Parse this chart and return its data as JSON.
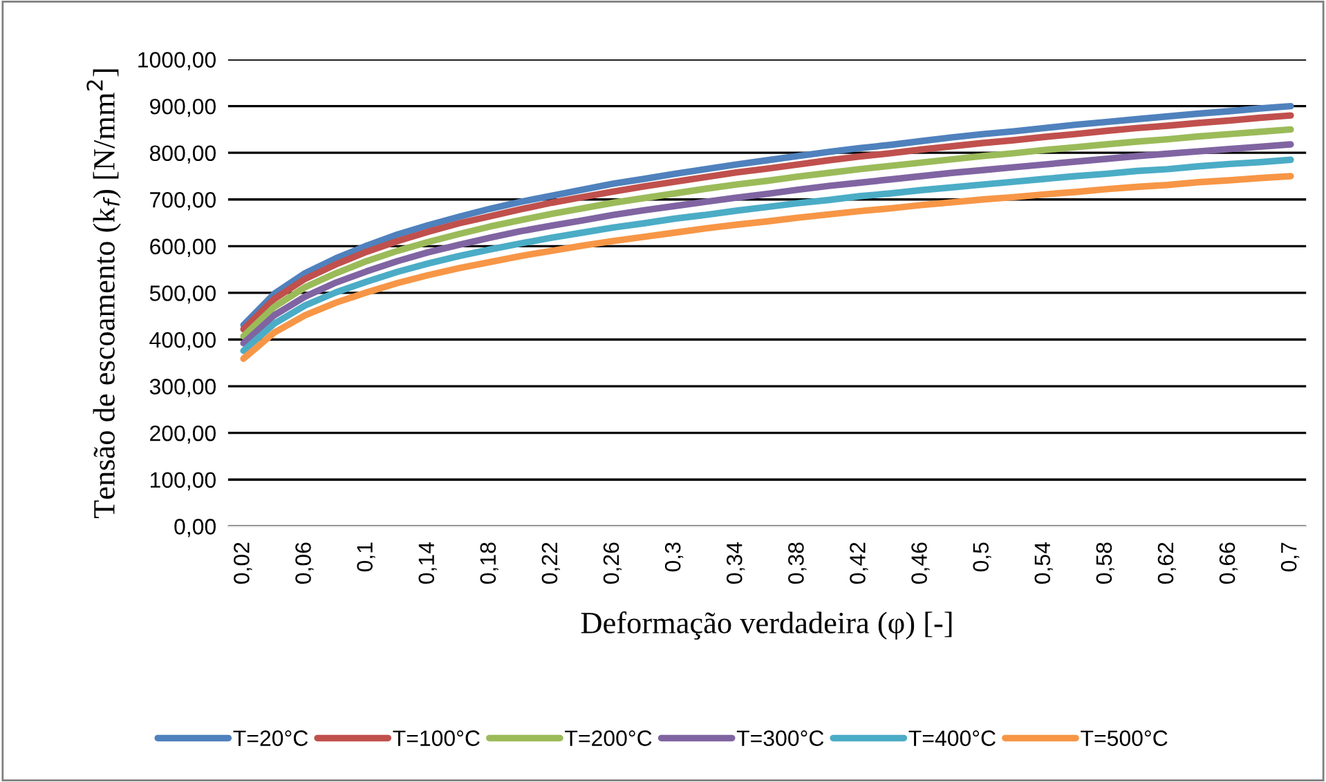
{
  "chart_data": {
    "type": "line",
    "xlabel": "Deformação verdadeira (φ) [-]",
    "ylabel": "Tensão de escoamento (k$_{f}$) [N/mm$^{2}$]",
    "categories": [
      "0,02",
      null,
      "0,06",
      null,
      "0,1",
      null,
      "0,14",
      null,
      "0,18",
      null,
      "0,22",
      null,
      "0,26",
      null,
      "0,3",
      null,
      "0,34",
      null,
      "0,38",
      null,
      "0,42",
      null,
      "0,46",
      null,
      "0,5",
      null,
      "0,54",
      null,
      "0,58",
      null,
      "0,62",
      null,
      "0,66",
      null,
      "0,7"
    ],
    "series": [
      {
        "name": "T=20°C",
        "color": "#4f81bd",
        "values": [
          431,
          498,
          542,
          574,
          601,
          625,
          645,
          663,
          680,
          695,
          708,
          721,
          734,
          744,
          755,
          765,
          775,
          784,
          793,
          802,
          810,
          817,
          825,
          833,
          840,
          846,
          853,
          860,
          866,
          872,
          878,
          884,
          889,
          895,
          900
        ]
      },
      {
        "name": "T=100°C",
        "color": "#c0504d",
        "values": [
          422,
          487,
          530,
          561,
          588,
          611,
          631,
          649,
          664,
          679,
          693,
          705,
          717,
          728,
          738,
          748,
          758,
          766,
          775,
          784,
          792,
          799,
          807,
          814,
          821,
          827,
          834,
          840,
          847,
          853,
          858,
          864,
          869,
          875,
          880
        ]
      },
      {
        "name": "T=200°C",
        "color": "#9bbb59",
        "values": [
          407,
          470,
          512,
          542,
          568,
          590,
          609,
          626,
          642,
          656,
          669,
          681,
          693,
          703,
          713,
          723,
          732,
          740,
          749,
          757,
          765,
          772,
          779,
          786,
          793,
          799,
          806,
          812,
          818,
          824,
          829,
          835,
          840,
          845,
          850
        ]
      },
      {
        "name": "T=300°C",
        "color": "#8064a2",
        "values": [
          392,
          452,
          492,
          522,
          546,
          568,
          587,
          603,
          618,
          632,
          644,
          655,
          667,
          677,
          686,
          695,
          704,
          712,
          721,
          729,
          736,
          743,
          750,
          757,
          763,
          769,
          775,
          781,
          787,
          793,
          798,
          803,
          808,
          813,
          818
        ]
      },
      {
        "name": "T=400°C",
        "color": "#4bacc6",
        "values": [
          376,
          434,
          473,
          501,
          524,
          545,
          563,
          579,
          593,
          606,
          618,
          629,
          640,
          649,
          659,
          667,
          676,
          684,
          692,
          699,
          707,
          713,
          720,
          726,
          732,
          738,
          744,
          750,
          755,
          761,
          765,
          771,
          776,
          780,
          785
        ]
      },
      {
        "name": "T=500°C",
        "color": "#f79646",
        "values": [
          359,
          415,
          452,
          479,
          501,
          521,
          538,
          553,
          566,
          579,
          590,
          601,
          611,
          620,
          629,
          638,
          646,
          653,
          661,
          668,
          675,
          681,
          688,
          694,
          700,
          705,
          711,
          716,
          722,
          727,
          731,
          737,
          741,
          746,
          750
        ]
      }
    ],
    "ylim": [
      0,
      1000
    ],
    "yticks": [
      {
        "value": 0,
        "label": "0,00"
      },
      {
        "value": 100,
        "label": "100,00"
      },
      {
        "value": 200,
        "label": "200,00"
      },
      {
        "value": 300,
        "label": "300,00"
      },
      {
        "value": 400,
        "label": "400,00"
      },
      {
        "value": 500,
        "label": "500,00"
      },
      {
        "value": 600,
        "label": "600,00"
      },
      {
        "value": 700,
        "label": "700,00"
      },
      {
        "value": 800,
        "label": "800,00"
      },
      {
        "value": 900,
        "label": "900,00"
      },
      {
        "value": 1000,
        "label": "1000,00"
      }
    ],
    "grid": "y",
    "legend": "bottom",
    "marker": "none",
    "line_style": "solid"
  }
}
